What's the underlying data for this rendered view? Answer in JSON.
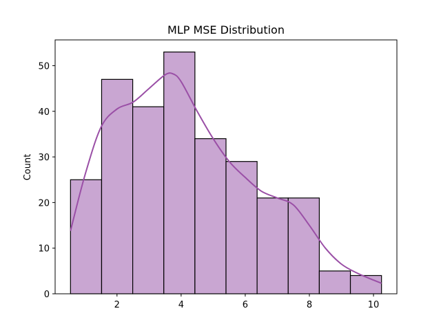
{
  "chart_data": {
    "type": "histogram",
    "title": "MLP MSE Distribution",
    "xlabel": "",
    "ylabel": "Count",
    "bins": [
      {
        "start": 0.55,
        "end": 1.52,
        "count": 25
      },
      {
        "start": 1.52,
        "end": 2.49,
        "count": 47
      },
      {
        "start": 2.49,
        "end": 3.46,
        "count": 41
      },
      {
        "start": 3.46,
        "end": 4.43,
        "count": 53
      },
      {
        "start": 4.43,
        "end": 5.4,
        "count": 34
      },
      {
        "start": 5.4,
        "end": 6.37,
        "count": 29
      },
      {
        "start": 6.37,
        "end": 7.34,
        "count": 21
      },
      {
        "start": 7.34,
        "end": 8.31,
        "count": 21
      },
      {
        "start": 8.31,
        "end": 9.28,
        "count": 5
      },
      {
        "start": 9.28,
        "end": 10.25,
        "count": 4
      }
    ],
    "kde": {
      "x": [
        0.55,
        1.0,
        1.5,
        2.0,
        2.5,
        3.0,
        3.5,
        3.75,
        4.0,
        4.5,
        5.0,
        5.5,
        6.0,
        6.5,
        7.0,
        7.5,
        8.0,
        8.5,
        9.0,
        9.5,
        10.0,
        10.25
      ],
      "y": [
        13.8,
        26.0,
        36.5,
        40.5,
        42.0,
        45.0,
        48.0,
        48.2,
        46.5,
        40.0,
        34.0,
        29.0,
        25.5,
        22.5,
        21.0,
        19.5,
        15.0,
        10.0,
        6.5,
        4.5,
        3.0,
        2.3
      ]
    },
    "xlim": [
      0.07,
      10.73
    ],
    "ylim": [
      0,
      55.65
    ],
    "xticks": [
      2,
      4,
      6,
      8,
      10
    ],
    "yticks": [
      0,
      10,
      20,
      30,
      40,
      50
    ],
    "colors": {
      "bar_fill": "#c9a6d2",
      "bar_edge": "#000000",
      "kde_line": "#9a4fa6"
    },
    "grid": false,
    "legend": "none"
  }
}
